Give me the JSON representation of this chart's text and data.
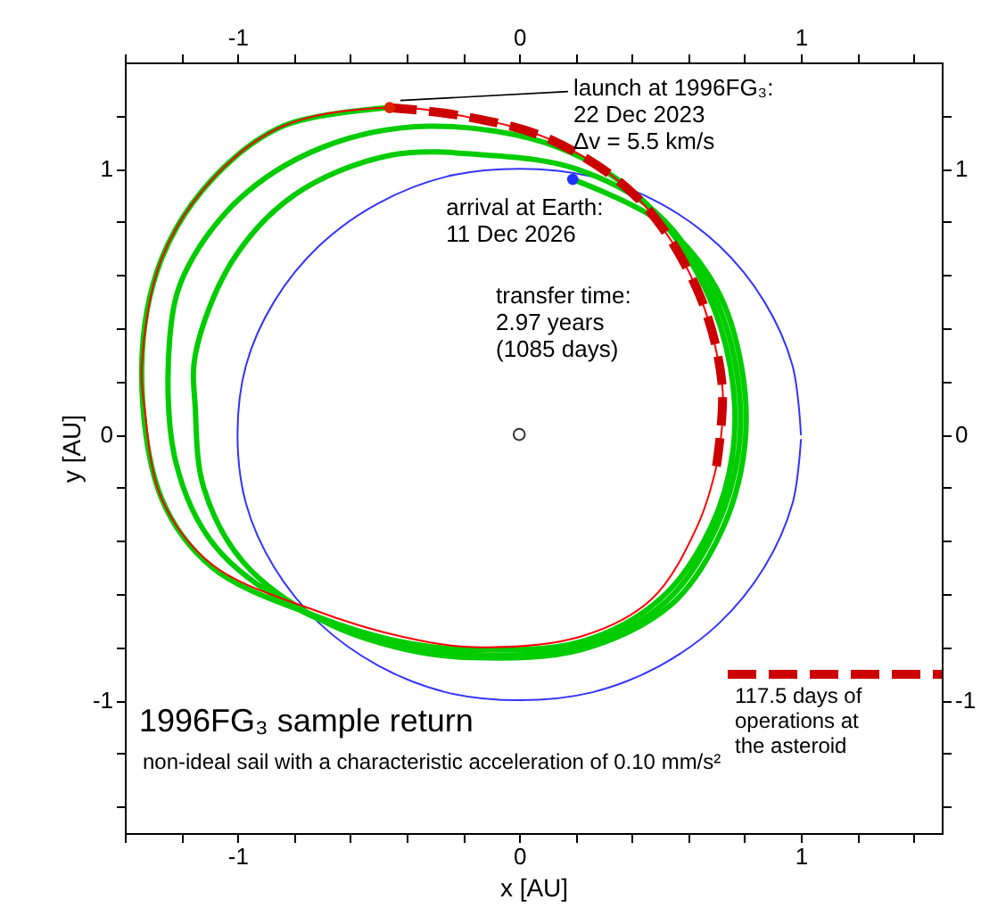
{
  "chart_data": {
    "type": "line",
    "title": "1996FG₃ sample return",
    "subtitle": "non-ideal sail with a characteristic acceleration of 0.10 mm/s²",
    "xlabel": "x [AU]",
    "ylabel": "y [AU]",
    "xlim": [
      -1.4,
      1.5
    ],
    "ylim": [
      -1.5,
      1.4
    ],
    "x2lim": [
      -1.4,
      1.5
    ],
    "y2lim": [
      -1.5,
      1.4
    ],
    "xticks": [
      {
        "value": -1.4,
        "label": null
      },
      {
        "value": -1.2,
        "label": null
      },
      -1,
      {
        "value": -0.8,
        "label": null
      },
      {
        "value": -0.6,
        "label": null
      },
      {
        "value": -0.4,
        "label": null
      },
      {
        "value": -0.2,
        "label": null
      },
      0,
      {
        "value": 0.2,
        "label": null
      },
      {
        "value": 0.4,
        "label": null
      },
      {
        "value": 0.6,
        "label": null
      },
      {
        "value": 0.8,
        "label": null
      },
      1,
      {
        "value": 1.2,
        "label": null
      },
      {
        "value": 1.4,
        "label": null
      }
    ],
    "yticks": [
      {
        "value": -1.4,
        "label": null
      },
      {
        "value": -1.2,
        "label": null
      },
      -1,
      {
        "value": -0.8,
        "label": null
      },
      {
        "value": -0.6,
        "label": null
      },
      {
        "value": -0.4,
        "label": null
      },
      {
        "value": -0.2,
        "label": null
      },
      0,
      {
        "value": 0.2,
        "label": null
      },
      {
        "value": 0.4,
        "label": null
      },
      {
        "value": 0.6,
        "label": null
      },
      {
        "value": 0.8,
        "label": null
      },
      1,
      {
        "value": 1.2,
        "label": null
      }
    ],
    "x2ticks": [
      {
        "value": -1.4,
        "label": null
      },
      {
        "value": -1.2,
        "label": null
      },
      -1,
      {
        "value": -0.8,
        "label": null
      },
      {
        "value": -0.6,
        "label": null
      },
      {
        "value": -0.4,
        "label": null
      },
      {
        "value": -0.2,
        "label": null
      },
      0,
      {
        "value": 0.2,
        "label": null
      },
      {
        "value": 0.4,
        "label": null
      },
      {
        "value": 0.6,
        "label": null
      },
      {
        "value": 0.8,
        "label": null
      },
      1,
      {
        "value": 1.2,
        "label": null
      },
      {
        "value": 1.4,
        "label": null
      }
    ],
    "y2ticks": [
      {
        "value": -1.4,
        "label": null
      },
      {
        "value": -1.2,
        "label": null
      },
      -1,
      {
        "value": -0.8,
        "label": null
      },
      {
        "value": -0.6,
        "label": null
      },
      {
        "value": -0.4,
        "label": null
      },
      {
        "value": -0.2,
        "label": null
      },
      0,
      {
        "value": 0.2,
        "label": null
      },
      {
        "value": 0.4,
        "label": null
      },
      {
        "value": 0.6,
        "label": null
      },
      {
        "value": 0.8,
        "label": null
      },
      1,
      {
        "value": 1.2,
        "label": null
      }
    ],
    "grid": false,
    "legend": "bottom right",
    "series": [
      {
        "color": "#3333ff",
        "x": [
          1,
          0.97,
          0.87,
          0.71,
          0.5,
          0.26,
          0,
          -0.26,
          -0.5,
          -0.71,
          -0.87,
          -0.97,
          -1,
          -0.97,
          -0.87,
          -0.71,
          -0.5,
          -0.26,
          0,
          0.26,
          0.5,
          0.71,
          0.87,
          0.97,
          1
        ],
        "values": [
          0,
          0.26,
          0.5,
          0.71,
          0.87,
          0.97,
          1,
          0.97,
          0.87,
          0.71,
          0.5,
          0.26,
          0,
          -0.26,
          -0.5,
          -0.71,
          -0.87,
          -0.97,
          -1,
          -0.97,
          -0.87,
          -0.71,
          -0.5,
          -0.26,
          -0.02
        ]
      },
      {
        "color": "#00cc00",
        "x": [
          -0.46,
          -0.84,
          -1.09,
          -1.27,
          -1.34,
          -1.27,
          -1.09,
          -0.73,
          -0.42,
          -0.16,
          0.22,
          0.5,
          0.68,
          0.76,
          0.75,
          0.66,
          0.45,
          0.14,
          -0.32,
          -0.7,
          -1.0,
          -1.19,
          -1.24,
          -1.22,
          -1.08,
          -0.78,
          -0.42,
          -0.16,
          0.22,
          0.52,
          0.7,
          0.78,
          0.77,
          0.68,
          0.48,
          0.2,
          -0.1,
          -0.46,
          -0.8,
          -1.02,
          -1.15,
          -1.15,
          -1.12,
          -0.98,
          -0.7,
          -0.4,
          -0.16,
          0.22,
          0.54,
          0.72,
          0.8,
          0.79,
          0.7,
          0.5,
          0.19
        ],
        "values": [
          1.23,
          1.16,
          0.96,
          0.66,
          0.26,
          -0.24,
          -0.5,
          -0.68,
          -0.78,
          -0.81,
          -0.78,
          -0.62,
          -0.35,
          -0.05,
          0.25,
          0.55,
          0.87,
          1.08,
          1.16,
          1.08,
          0.88,
          0.6,
          0.37,
          -0.1,
          -0.42,
          -0.66,
          -0.79,
          -0.83,
          -0.8,
          -0.63,
          -0.35,
          -0.05,
          0.25,
          0.55,
          0.84,
          1.0,
          1.05,
          1.05,
          0.9,
          0.65,
          0.3,
          0.1,
          -0.2,
          -0.48,
          -0.7,
          -0.81,
          -0.84,
          -0.81,
          -0.64,
          -0.36,
          -0.05,
          0.25,
          0.55,
          0.8,
          0.96
        ]
      },
      {
        "color": "#ff0000",
        "x": [
          0.72,
          0.72,
          0.63,
          0.42,
          0.11,
          -0.21,
          -0.46,
          -0.84,
          -1.09,
          -1.27,
          -1.34,
          -1.33,
          -1.27,
          -1.09,
          -0.73,
          -0.42,
          -0.16,
          0.22,
          0.47,
          0.63,
          0.7,
          0.72
        ],
        "values": [
          0.05,
          0.19,
          0.55,
          0.89,
          1.11,
          1.2,
          1.23,
          1.16,
          0.96,
          0.66,
          0.26,
          0.1,
          -0.24,
          -0.49,
          -0.66,
          -0.76,
          -0.8,
          -0.76,
          -0.62,
          -0.35,
          -0.12,
          0.03
        ]
      },
      {
        "name": "117.5 days of operations at the asteroid",
        "color": "#cc0000",
        "line_style": "dashed",
        "x": [
          0.7,
          0.72,
          0.63,
          0.42,
          0.11,
          -0.21,
          -0.46
        ],
        "values": [
          -0.12,
          0.19,
          0.55,
          0.89,
          1.11,
          1.2,
          1.23
        ]
      },
      {
        "type": "scatter",
        "marker": "circle",
        "color": "#dd2200",
        "x": [
          -0.46
        ],
        "values": [
          1.23
        ]
      },
      {
        "type": "scatter",
        "marker": "circle",
        "color": "#2233ff",
        "x": [
          0.19
        ],
        "values": [
          0.96
        ]
      },
      {
        "type": "scatter",
        "marker": "circle",
        "color": "#333333",
        "x": [
          0
        ],
        "values": [
          0
        ]
      }
    ],
    "annotations": [
      {
        "text": "launch at 1996FG₃:\n22 Dec 2023\nΔv = 5.5 km/s",
        "x": -0.46,
        "y": 1.23
      },
      {
        "text": "arrival at Earth:\n11 Dec 2026",
        "x": 0.19,
        "y": 0.96
      },
      "transfer time:\n2.97 years\n(1085 days)"
    ]
  }
}
